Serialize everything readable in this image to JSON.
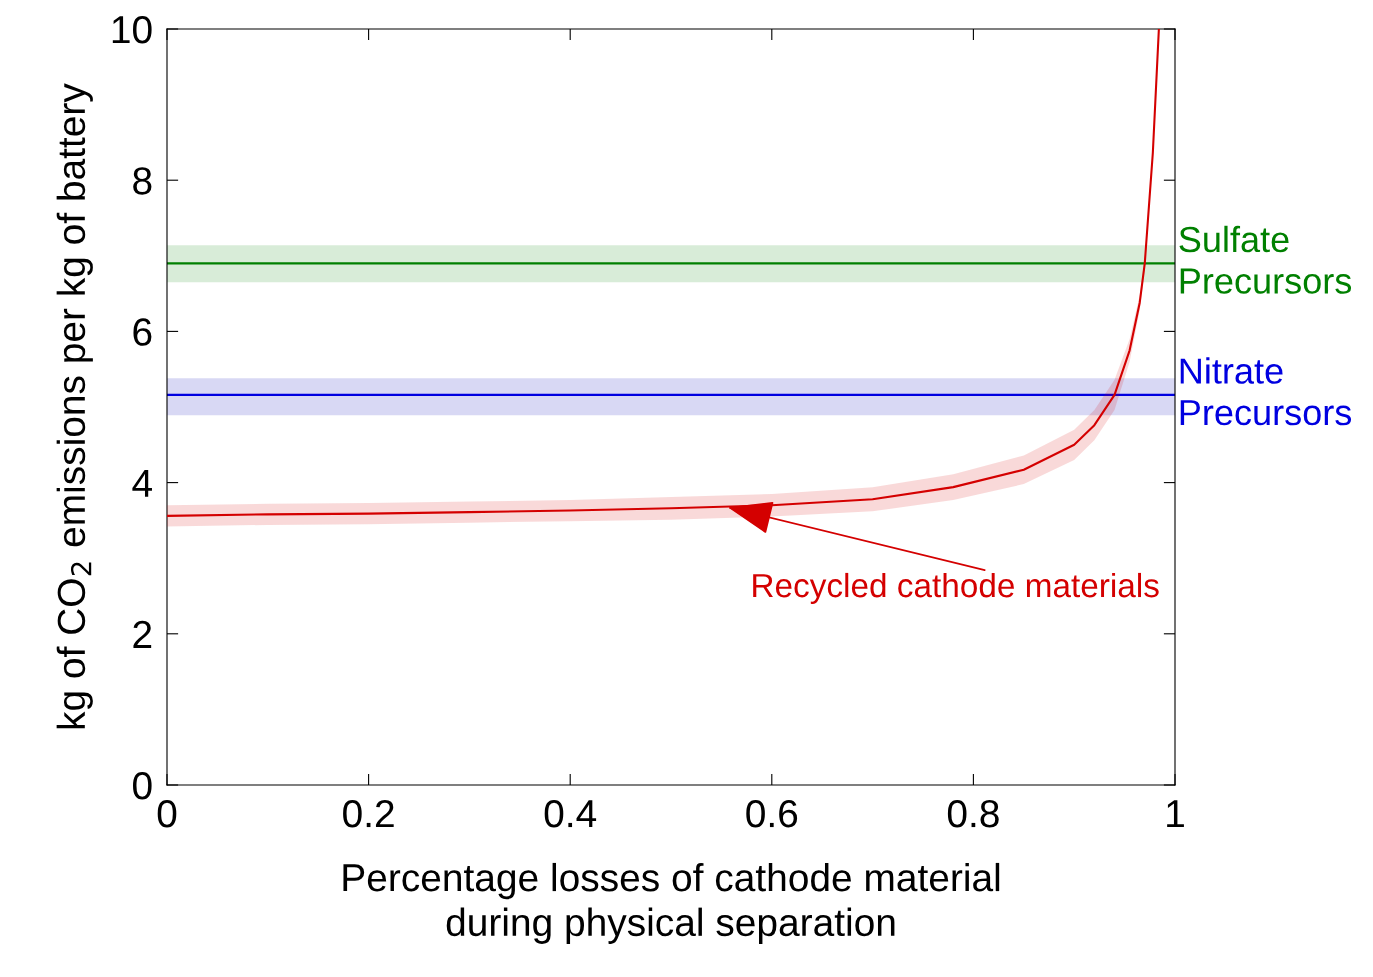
{
  "chart_data": {
    "type": "line",
    "xlabel": "Percentage losses of cathode material\nduring physical separation",
    "ylabel": "kg of CO$_{2}$ emissions per kg of battery",
    "x": [
      0,
      0.1,
      0.2,
      0.3,
      0.4,
      0.5,
      0.6,
      0.7,
      0.78,
      0.85,
      0.9,
      0.92,
      0.94,
      0.955,
      0.965,
      0.97,
      0.978,
      0.984
    ],
    "series": [
      {
        "color": "#d40000",
        "values": [
          3.56,
          3.58,
          3.59,
          3.61,
          3.63,
          3.66,
          3.7,
          3.78,
          3.94,
          4.17,
          4.5,
          4.76,
          5.16,
          5.75,
          6.38,
          6.9,
          8.36,
          10
        ],
        "lower": [
          3.42,
          3.44,
          3.45,
          3.47,
          3.49,
          3.51,
          3.55,
          3.62,
          3.77,
          3.98,
          4.3,
          4.56,
          4.96,
          5.6,
          6.28,
          6.82,
          8.3,
          9.95
        ],
        "upper": [
          3.7,
          3.72,
          3.73,
          3.75,
          3.77,
          3.81,
          3.85,
          3.94,
          4.11,
          4.36,
          4.7,
          4.96,
          5.36,
          5.9,
          6.48,
          6.98,
          8.42,
          10
        ]
      }
    ],
    "ref_lines": [
      {
        "axis": "y",
        "value": 6.9,
        "label": "Sulfate\nPrecursors",
        "color": "#008000"
      },
      {
        "axis": "y",
        "value": 5.16,
        "label": "Nitrate\nPrecursors",
        "color": "#0000e0"
      }
    ],
    "bands": [
      {
        "axis": "y",
        "from": 6.65,
        "to": 7.14,
        "color": "#d8ecd8"
      },
      {
        "axis": "y",
        "from": 4.89,
        "to": 5.38,
        "color": "#d8d8f4"
      }
    ],
    "annotations": [
      {
        "text": "Recycled cathode materials",
        "x": 0.551,
        "y": 3.69
      }
    ],
    "xlim": [
      0,
      1
    ],
    "ylim": [
      0,
      10
    ],
    "xticks": [
      0,
      0.2,
      0.4,
      0.6,
      0.8,
      1
    ],
    "yticks": [
      0,
      2,
      4,
      6,
      8,
      10
    ],
    "grid": false,
    "legend": false,
    "marker": "none",
    "line_style": "solid"
  }
}
